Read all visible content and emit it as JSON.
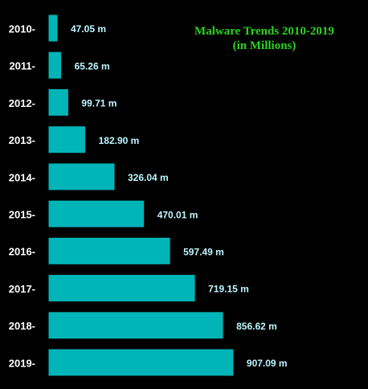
{
  "chart_data": {
    "type": "bar",
    "orientation": "horizontal",
    "title": "Malware Trends 2010-2019",
    "subtitle": "(in Millions)",
    "categories": [
      "2010",
      "2011",
      "2012",
      "2013",
      "2014",
      "2015",
      "2016",
      "2017",
      "2018",
      "2019"
    ],
    "values": [
      47.05,
      65.26,
      99.71,
      182.9,
      326.04,
      470.01,
      597.49,
      719.15,
      856.62,
      907.09
    ],
    "data_labels": [
      "47.05 m",
      "65.26 m",
      "99.71 m",
      "182.90 m",
      "326.04 m",
      "470.01 m",
      "597.49 m",
      "719.15 m",
      "856.62 m",
      "907.09 m"
    ],
    "tick_labels": [
      "2010-",
      "2011-",
      "2012-",
      "2013-",
      "2014-",
      "2015-",
      "2016-",
      "2017-",
      "2018-",
      "2019-"
    ],
    "xlabel": "",
    "ylabel": "",
    "grid": false,
    "legend": "none",
    "colors": {
      "background": "#000000",
      "bar": "#00b5b8",
      "bar_edge": "#000000",
      "title": "#2bd21e",
      "tick_label": "#ffffff",
      "data_label": "#bff6ff"
    }
  }
}
